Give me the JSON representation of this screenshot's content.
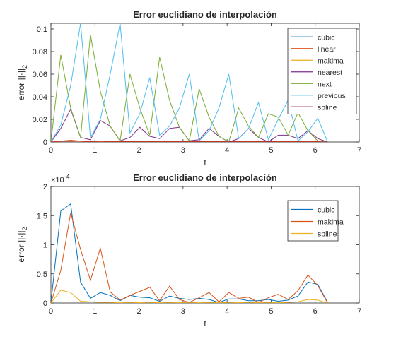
{
  "chart_data": [
    {
      "type": "line",
      "title": "Error euclidiano de interpolación",
      "xlabel": "t",
      "ylabel_main": "error ||·||",
      "ylabel_sub": "2",
      "xlim": [
        0,
        7
      ],
      "ylim": [
        0,
        0.105
      ],
      "xticks": [
        0,
        1,
        2,
        3,
        4,
        5,
        6,
        7
      ],
      "yticks": [
        0,
        0.02,
        0.04,
        0.06,
        0.08,
        0.1
      ],
      "ytick_labels": [
        "0",
        "0.02",
        "0.04",
        "0.06",
        "0.08",
        "0.1"
      ],
      "exponent": "",
      "legend_position": "top-right",
      "x": [
        0,
        0.2244,
        0.4488,
        0.6732,
        0.8976,
        1.122,
        1.3464,
        1.5708,
        1.7952,
        2.0196,
        2.244,
        2.4684,
        2.6928,
        2.9172,
        3.1416,
        3.366,
        3.5904,
        3.8148,
        4.0392,
        4.2636,
        4.488,
        4.7124,
        4.9368,
        5.1612,
        5.3856,
        5.61,
        5.8344,
        6.0588,
        6.2832
      ],
      "series": [
        {
          "name": "cubic",
          "color": "#0072BD",
          "values": [
            0,
            0.00016,
            0.00017,
            4e-05,
            1e-05,
            2e-05,
            1e-05,
            5e-06,
            1e-05,
            1e-05,
            1e-05,
            5e-06,
            1e-05,
            5e-06,
            1e-05,
            5e-06,
            1e-05,
            5e-06,
            1e-05,
            5e-06,
            1e-05,
            5e-06,
            1e-05,
            5e-06,
            1e-05,
            1e-05,
            4e-05,
            3e-05,
            0
          ]
        },
        {
          "name": "linear",
          "color": "#D95319",
          "values": [
            0,
            0.0008,
            0.0016,
            0.0008,
            0.0003,
            0.0008,
            0.0005,
            0.0003,
            0.0005,
            0.0003,
            0.0005,
            0.0003,
            0.0005,
            0.0003,
            0.0005,
            0.0003,
            0.0005,
            0.0003,
            0.0005,
            0.0003,
            0.0005,
            0.0003,
            0.0005,
            0.0003,
            0.0005,
            0.0003,
            0.0005,
            0.0004,
            0
          ]
        },
        {
          "name": "makima",
          "color": "#EDB120",
          "values": [
            0,
            6e-05,
            0.00016,
            9e-05,
            4e-05,
            9e-05,
            2e-05,
            1e-05,
            1e-05,
            2e-05,
            3e-05,
            1e-05,
            3e-05,
            1e-05,
            1e-05,
            1e-05,
            1e-05,
            2e-05,
            1e-05,
            2e-05,
            1e-05,
            1e-05,
            1e-05,
            1e-05,
            2e-05,
            1e-05,
            5e-05,
            3e-05,
            0
          ]
        },
        {
          "name": "nearest",
          "color": "#7E2F8E",
          "values": [
            0,
            0.012,
            0.029,
            0.004,
            0.002,
            0.019,
            0.014,
            0.001,
            0.004,
            0.013,
            0.005,
            0.003,
            0.012,
            0.013,
            0.001,
            0.002,
            0.012,
            0.005,
            0.0,
            0.003,
            0.012,
            0.004,
            0.0,
            0.006,
            0.006,
            0.003,
            0.01,
            0.003,
            0
          ]
        },
        {
          "name": "next",
          "color": "#77AC30",
          "values": [
            0,
            0.077,
            0.03,
            0.004,
            0.095,
            0.045,
            0.014,
            0.001,
            0.06,
            0.03,
            0.006,
            0.075,
            0.037,
            0.013,
            0.001,
            0.047,
            0.022,
            0.005,
            0.0,
            0.03,
            0.014,
            0.004,
            0.025,
            0.022,
            0.006,
            0.026,
            0.01,
            0.001,
            0
          ]
        },
        {
          "name": "previous",
          "color": "#4DBEEE",
          "values": [
            0,
            0.015,
            0.05,
            0.105,
            0.004,
            0.02,
            0.06,
            0.105,
            0.008,
            0.025,
            0.057,
            0.006,
            0.014,
            0.03,
            0.06,
            0.001,
            0.01,
            0.03,
            0.06,
            0.003,
            0.012,
            0.035,
            0.002,
            0.02,
            0.037,
            0.001,
            0.009,
            0.021,
            0
          ]
        },
        {
          "name": "spline",
          "color": "#A2142F",
          "values": [
            0,
            2e-05,
            2e-05,
            1e-05,
            5e-06,
            5e-06,
            5e-06,
            0,
            5e-06,
            5e-06,
            5e-06,
            0,
            5e-06,
            0,
            5e-06,
            0,
            5e-06,
            0,
            5e-06,
            0,
            5e-06,
            0,
            5e-06,
            0,
            5e-06,
            0,
            5e-06,
            5e-06,
            0
          ]
        }
      ]
    },
    {
      "type": "line",
      "title": "Error euclidiano de interpolación",
      "xlabel": "t",
      "ylabel_main": "error ||·||",
      "ylabel_sub": "2",
      "xlim": [
        0,
        7
      ],
      "ylim": [
        0,
        0.0002
      ],
      "xticks": [
        0,
        1,
        2,
        3,
        4,
        5,
        6,
        7
      ],
      "yticks": [
        0,
        5e-05,
        0.0001,
        0.00015,
        0.0002
      ],
      "ytick_labels": [
        "0",
        "0.5",
        "1",
        "1.5",
        "2"
      ],
      "exponent": "×10",
      "exponent_power": "-4",
      "legend_position": "top-right",
      "x": [
        0,
        0.2244,
        0.4488,
        0.6732,
        0.8976,
        1.122,
        1.3464,
        1.5708,
        1.7952,
        2.0196,
        2.244,
        2.4684,
        2.6928,
        2.9172,
        3.1416,
        3.366,
        3.5904,
        3.8148,
        4.0392,
        4.2636,
        4.488,
        4.7124,
        4.9368,
        5.1612,
        5.3856,
        5.61,
        5.8344,
        6.0588,
        6.2832
      ],
      "series": [
        {
          "name": "cubic",
          "color": "#0072BD",
          "values": [
            0,
            0.000158,
            0.00017,
            3.6e-05,
            8e-06,
            1.8e-05,
            1.3e-05,
            4e-06,
            1.3e-05,
            1e-05,
            9e-06,
            3e-06,
            1.2e-05,
            8e-06,
            6e-06,
            8e-06,
            6e-06,
            1e-06,
            7e-06,
            7e-06,
            4e-06,
            4e-06,
            6e-06,
            3e-06,
            5e-06,
            1.2e-05,
            3.6e-05,
            3.2e-05,
            1e-06
          ]
        },
        {
          "name": "makima",
          "color": "#D95319",
          "values": [
            0,
            5.6e-05,
            0.000155,
            9.2e-05,
            3.9e-05,
            9.4e-05,
            1.9e-05,
            5e-06,
            1.3e-05,
            2e-05,
            2.7e-05,
            4e-06,
            2.9e-05,
            6e-06,
            1e-06,
            9e-06,
            1.8e-05,
            2e-06,
            1.8e-05,
            8e-06,
            1e-05,
            1e-06,
            9e-06,
            1.5e-05,
            6e-06,
            2.1e-05,
            4.8e-05,
            3e-05,
            0
          ]
        },
        {
          "name": "spline",
          "color": "#EDB120",
          "values": [
            0,
            2.2e-05,
            1.8e-05,
            3e-06,
            2e-06,
            1e-06,
            1e-06,
            5e-07,
            1e-06,
            5e-07,
            1e-06,
            5e-07,
            1e-06,
            5e-07,
            1e-06,
            5e-07,
            1e-06,
            5e-07,
            1e-06,
            5e-07,
            1e-06,
            5e-07,
            1e-06,
            5e-07,
            1e-06,
            2e-06,
            6e-06,
            5e-06,
            0
          ]
        }
      ]
    }
  ]
}
